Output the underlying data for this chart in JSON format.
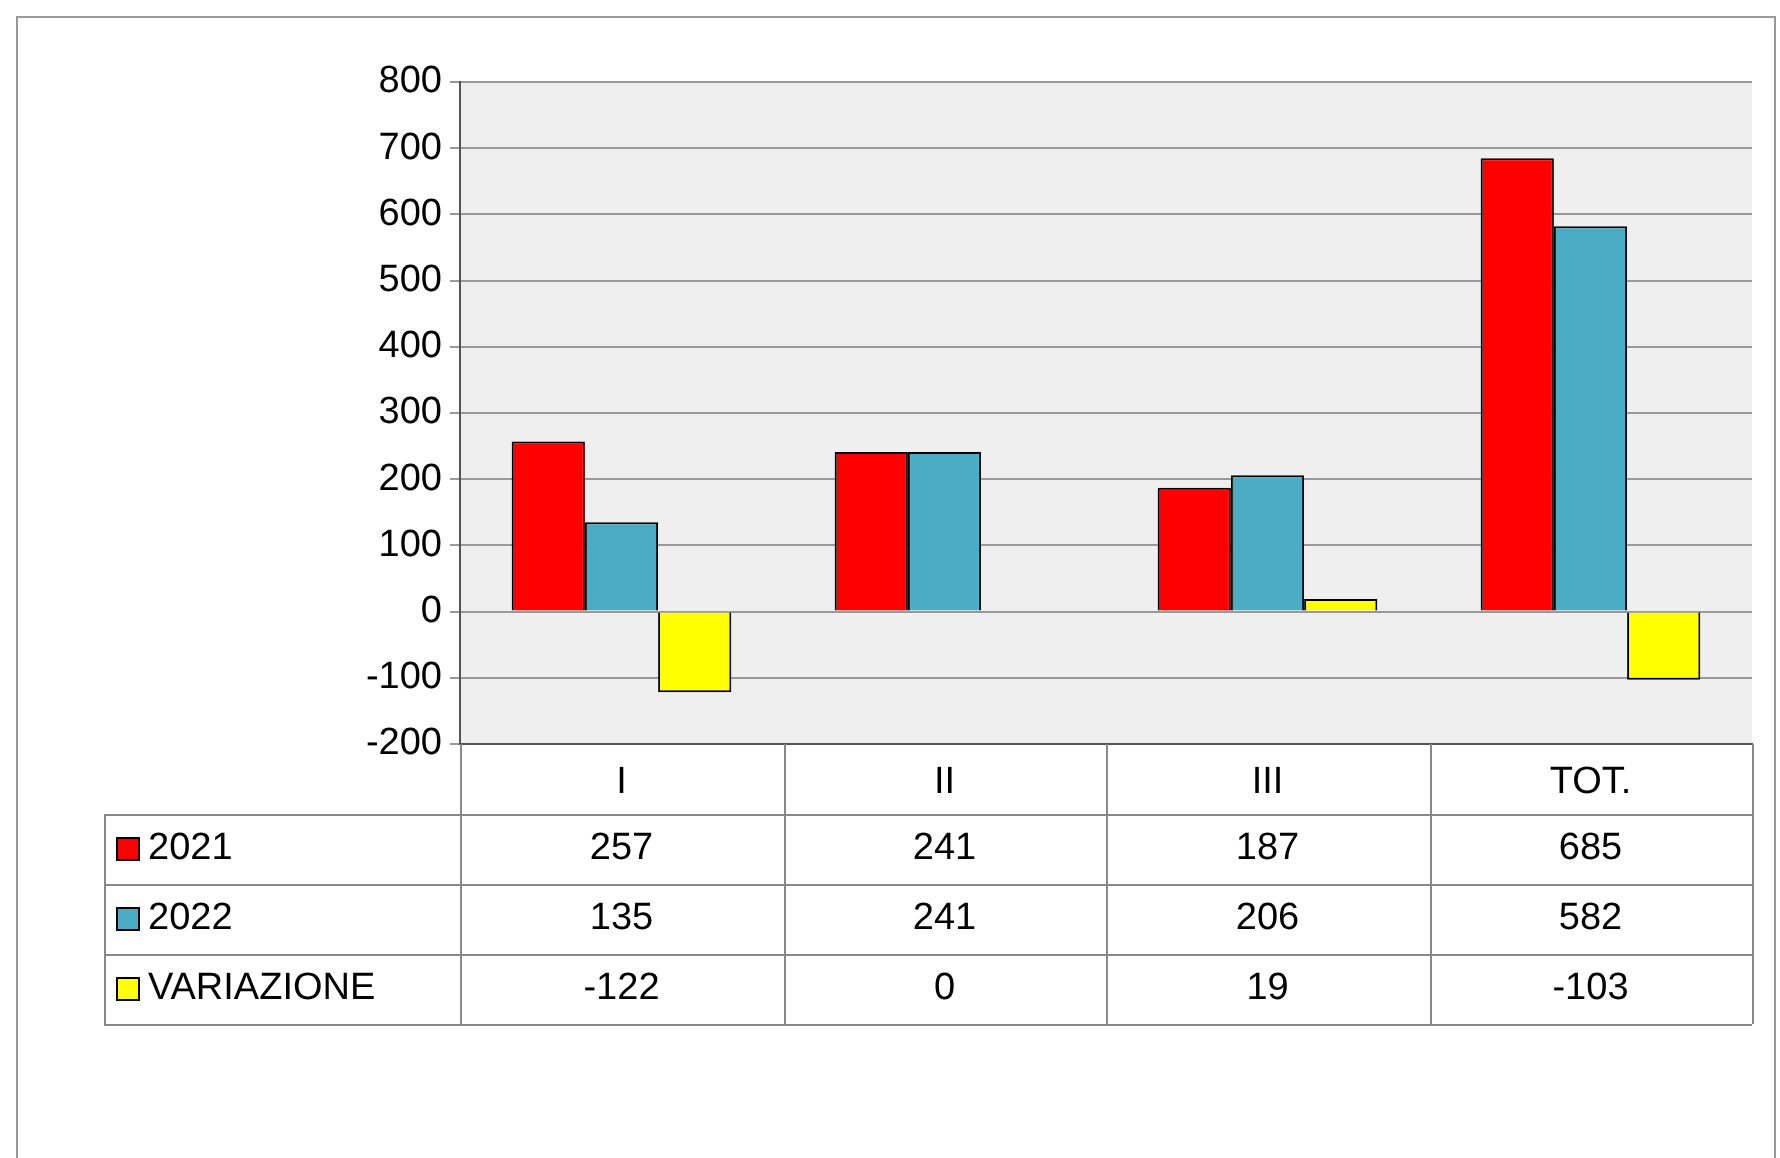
{
  "chart_data": {
    "type": "bar",
    "categories": [
      "I",
      "II",
      "III",
      "TOT."
    ],
    "series": [
      {
        "name": "2021",
        "color": "#ff0000",
        "values": [
          257,
          241,
          187,
          685
        ]
      },
      {
        "name": "2022",
        "color": "#4bacc6",
        "values": [
          135,
          241,
          206,
          582
        ]
      },
      {
        "name": "VARIAZIONE",
        "color": "#ffff00",
        "values": [
          -122,
          0,
          19,
          -103
        ]
      }
    ],
    "ylim": [
      -200,
      800
    ],
    "yticks": [
      -200,
      -100,
      0,
      100,
      200,
      300,
      400,
      500,
      600,
      700,
      800
    ],
    "grid": "y",
    "legend": "bottom",
    "data_labels": true
  }
}
